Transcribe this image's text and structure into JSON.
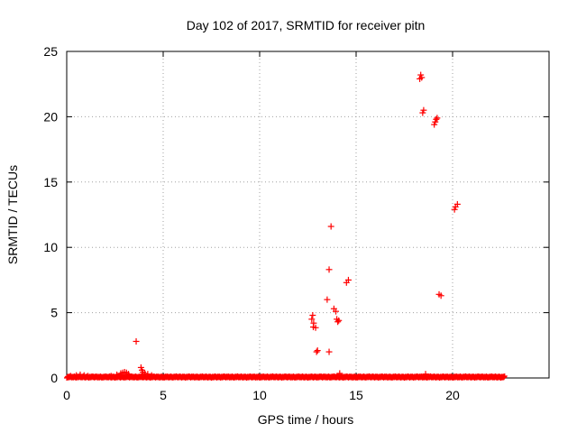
{
  "chart_data": {
    "type": "scatter",
    "title": "Day 102 of 2017, SRMTID for receiver pitn",
    "xlabel": "GPS time / hours",
    "ylabel": "SRMTID / TECUs",
    "xlim": [
      0,
      25
    ],
    "ylim": [
      0,
      25
    ],
    "xticks": [
      0,
      5,
      10,
      15,
      20
    ],
    "yticks": [
      0,
      5,
      10,
      15,
      20,
      25
    ],
    "grid": true,
    "marker": "+",
    "series_color": "#ff0000",
    "baseline": [
      {
        "x_start": 0.0,
        "x_end": 22.7,
        "y_min": 0.0,
        "y_max": 0.15
      }
    ],
    "points": [
      [
        0.2,
        0.15
      ],
      [
        0.5,
        0.2
      ],
      [
        0.7,
        0.25
      ],
      [
        0.9,
        0.2
      ],
      [
        1.1,
        0.15
      ],
      [
        2.3,
        0.15
      ],
      [
        2.6,
        0.25
      ],
      [
        2.8,
        0.35
      ],
      [
        2.9,
        0.4
      ],
      [
        3.0,
        0.45
      ],
      [
        3.1,
        0.4
      ],
      [
        3.2,
        0.3
      ],
      [
        3.6,
        2.8
      ],
      [
        3.85,
        0.8
      ],
      [
        3.9,
        0.6
      ],
      [
        3.95,
        0.45
      ],
      [
        4.05,
        0.35
      ],
      [
        4.2,
        0.3
      ],
      [
        4.4,
        0.2
      ],
      [
        12.7,
        4.5
      ],
      [
        12.75,
        4.8
      ],
      [
        12.8,
        4.2
      ],
      [
        12.78,
        3.9
      ],
      [
        12.9,
        3.85
      ],
      [
        12.95,
        2.0
      ],
      [
        13.0,
        2.1
      ],
      [
        13.5,
        6.0
      ],
      [
        13.6,
        2.0
      ],
      [
        13.6,
        8.3
      ],
      [
        13.7,
        11.6
      ],
      [
        13.85,
        5.3
      ],
      [
        13.95,
        5.1
      ],
      [
        14.0,
        4.5
      ],
      [
        14.05,
        4.3
      ],
      [
        14.1,
        4.4
      ],
      [
        14.15,
        0.35
      ],
      [
        14.5,
        7.3
      ],
      [
        14.6,
        7.5
      ],
      [
        18.3,
        22.9
      ],
      [
        18.35,
        23.2
      ],
      [
        18.4,
        23.0
      ],
      [
        18.45,
        20.3
      ],
      [
        18.5,
        20.5
      ],
      [
        18.6,
        0.3
      ],
      [
        19.05,
        19.4
      ],
      [
        19.1,
        19.6
      ],
      [
        19.15,
        19.8
      ],
      [
        19.2,
        19.9
      ],
      [
        19.3,
        6.4
      ],
      [
        19.4,
        6.3
      ],
      [
        20.1,
        12.9
      ],
      [
        20.15,
        13.1
      ],
      [
        20.25,
        13.3
      ]
    ]
  }
}
